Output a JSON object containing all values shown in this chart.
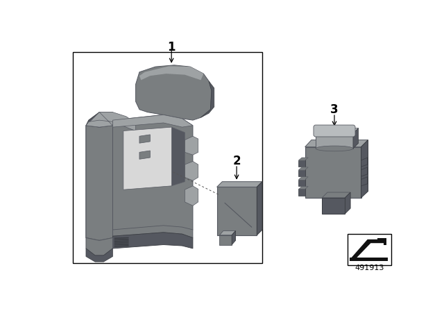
{
  "bg_color": "#ffffff",
  "part_color": "#7a7e80",
  "part_color_light": "#9ea2a4",
  "part_color_lighter": "#b8bcbe",
  "part_color_dark": "#555860",
  "part_color_darker": "#3a3d42",
  "label1": "1",
  "label2": "2",
  "label3": "3",
  "part_number": "491913"
}
